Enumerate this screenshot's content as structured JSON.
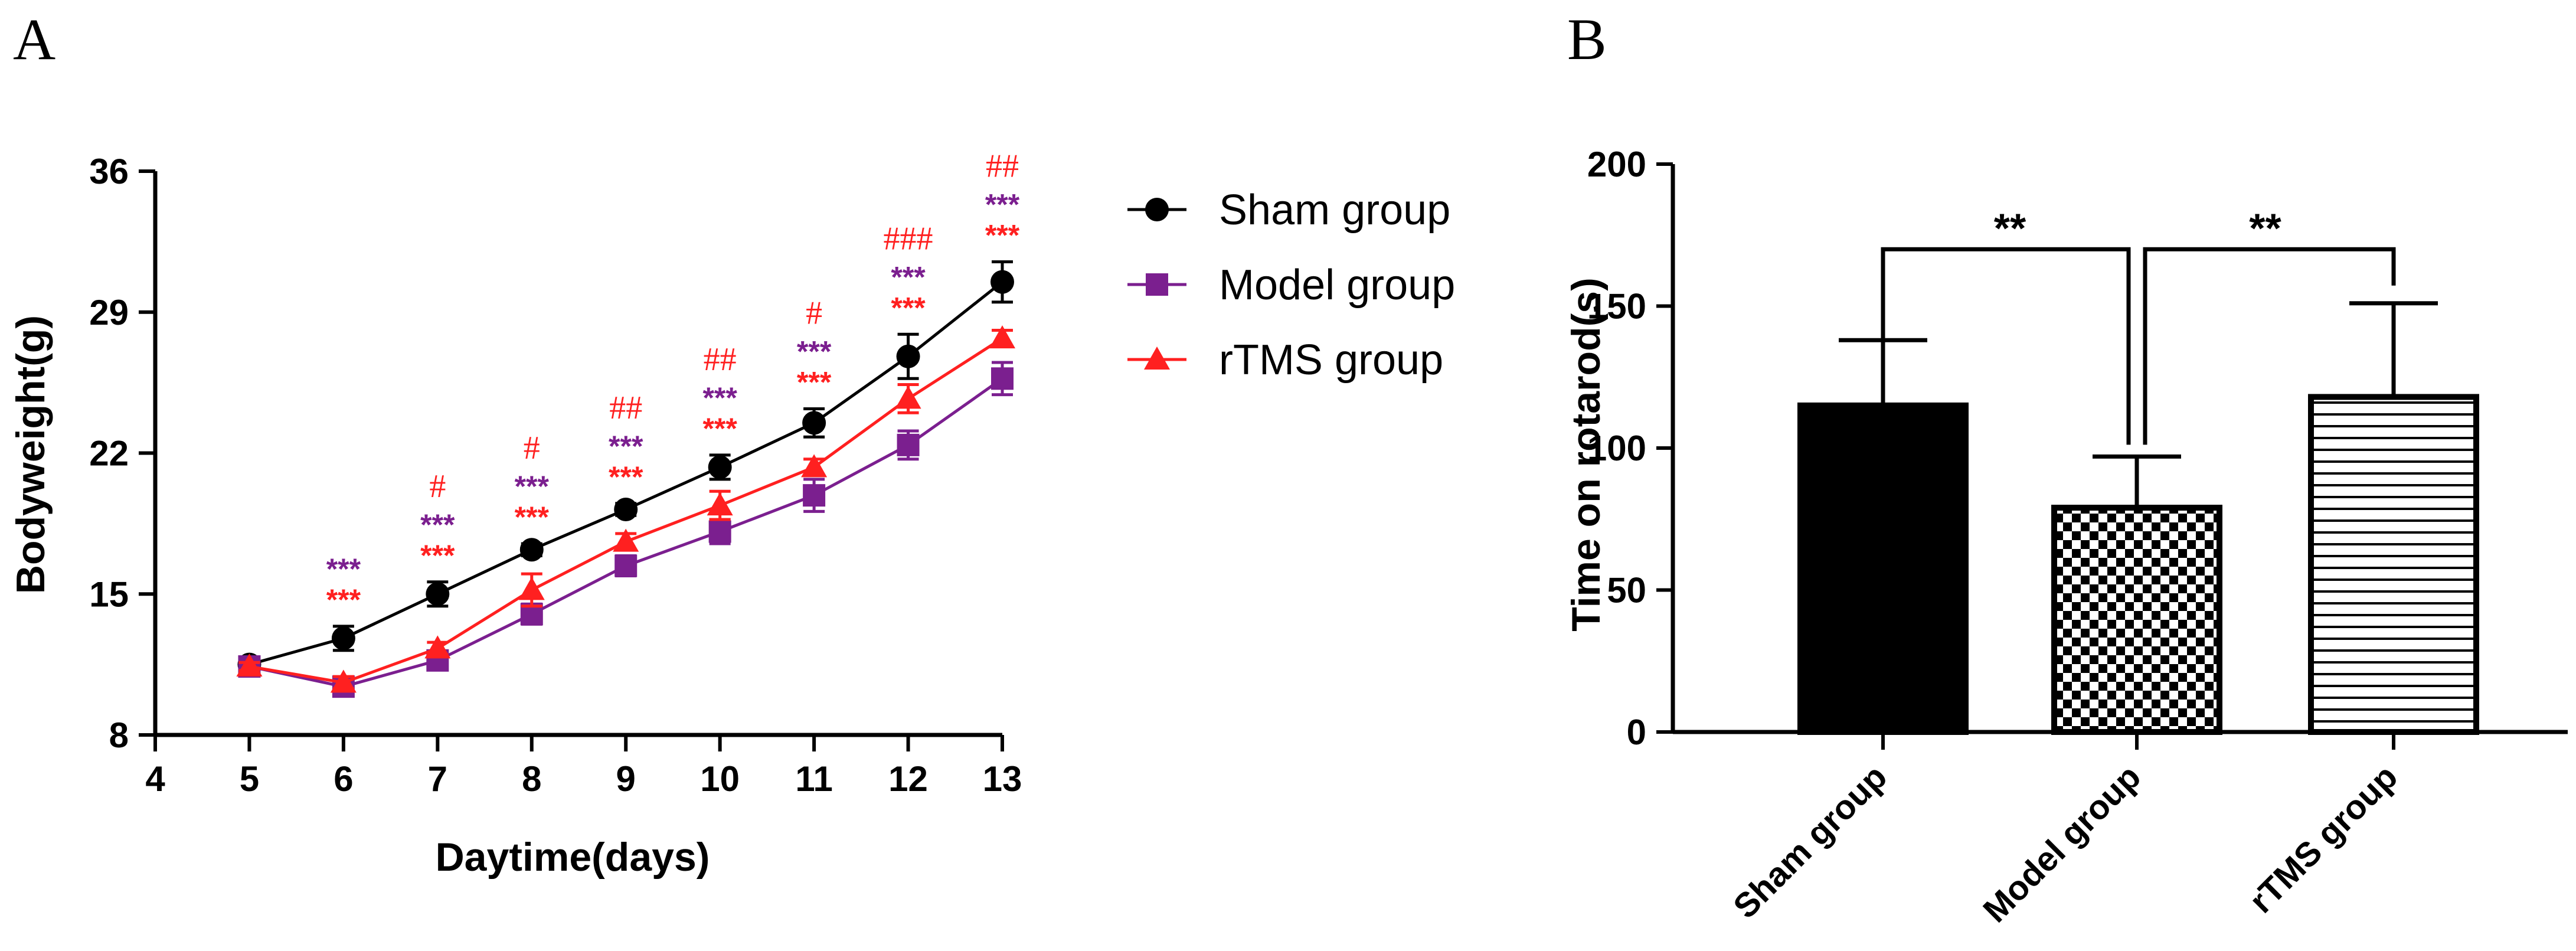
{
  "panels": {
    "a": "A",
    "b": "B"
  },
  "colors": {
    "sham": "#000000",
    "model": "#7B1F8F",
    "rtms": "#FF2020",
    "axis": "#000000"
  },
  "chart_data": [
    {
      "type": "line",
      "panel": "A",
      "xlabel": "Daytime(days)",
      "ylabel": "Bodyweight(g)",
      "xlim": [
        4,
        13
      ],
      "ylim": [
        8,
        36
      ],
      "xticks": [
        4,
        5,
        6,
        7,
        8,
        9,
        10,
        11,
        12,
        13
      ],
      "yticks": [
        8,
        15,
        22,
        29,
        36
      ],
      "x": [
        5,
        6,
        7,
        8,
        9,
        10,
        11,
        12,
        13
      ],
      "series": [
        {
          "name": "Sham group",
          "key": "sham",
          "marker": "circle",
          "values": [
            11.5,
            12.8,
            15.0,
            17.2,
            19.2,
            21.3,
            23.5,
            26.8,
            30.5
          ],
          "err": [
            0.3,
            0.6,
            0.6,
            0.3,
            0.3,
            0.6,
            0.7,
            1.1,
            1.0
          ]
        },
        {
          "name": "Model group",
          "key": "model",
          "marker": "square",
          "values": [
            11.4,
            10.4,
            11.7,
            14.0,
            16.4,
            18.1,
            19.9,
            22.4,
            25.7
          ],
          "err": [
            0.3,
            0.3,
            0.4,
            0.5,
            0.5,
            0.6,
            0.8,
            0.7,
            0.8
          ]
        },
        {
          "name": "rTMS group",
          "key": "rtms",
          "marker": "triangle",
          "values": [
            11.4,
            10.6,
            12.3,
            15.2,
            17.6,
            19.4,
            21.3,
            24.7,
            27.7
          ],
          "err": [
            0.2,
            0.3,
            0.3,
            0.8,
            0.4,
            0.7,
            0.4,
            0.7,
            0.4
          ]
        }
      ],
      "annotations": [
        {
          "x": 6,
          "lines": [
            {
              "text": "***",
              "key": "model",
              "kind": "star"
            },
            {
              "text": "***",
              "key": "rtms",
              "kind": "star"
            }
          ]
        },
        {
          "x": 7,
          "lines": [
            {
              "text": "#",
              "key": "rtms",
              "kind": "hash"
            },
            {
              "text": "***",
              "key": "model",
              "kind": "star"
            },
            {
              "text": "***",
              "key": "rtms",
              "kind": "star"
            }
          ]
        },
        {
          "x": 8,
          "lines": [
            {
              "text": "#",
              "key": "rtms",
              "kind": "hash"
            },
            {
              "text": "***",
              "key": "model",
              "kind": "star"
            },
            {
              "text": "***",
              "key": "rtms",
              "kind": "star"
            }
          ]
        },
        {
          "x": 9,
          "lines": [
            {
              "text": "##",
              "key": "rtms",
              "kind": "hash"
            },
            {
              "text": "***",
              "key": "model",
              "kind": "star"
            },
            {
              "text": "***",
              "key": "rtms",
              "kind": "star"
            }
          ]
        },
        {
          "x": 10,
          "lines": [
            {
              "text": "##",
              "key": "rtms",
              "kind": "hash"
            },
            {
              "text": "***",
              "key": "model",
              "kind": "star"
            },
            {
              "text": "***",
              "key": "rtms",
              "kind": "star"
            }
          ]
        },
        {
          "x": 11,
          "lines": [
            {
              "text": "#",
              "key": "rtms",
              "kind": "hash"
            },
            {
              "text": "***",
              "key": "model",
              "kind": "star"
            },
            {
              "text": "***",
              "key": "rtms",
              "kind": "star"
            }
          ]
        },
        {
          "x": 12,
          "lines": [
            {
              "text": "###",
              "key": "rtms",
              "kind": "hash"
            },
            {
              "text": "***",
              "key": "model",
              "kind": "star"
            },
            {
              "text": "***",
              "key": "rtms",
              "kind": "star"
            }
          ]
        },
        {
          "x": 13,
          "lines": [
            {
              "text": "##",
              "key": "rtms",
              "kind": "hash"
            },
            {
              "text": "***",
              "key": "model",
              "kind": "star"
            },
            {
              "text": "***",
              "key": "rtms",
              "kind": "star"
            }
          ]
        }
      ]
    },
    {
      "type": "bar",
      "panel": "B",
      "xlabel": "",
      "ylabel": "Time on rotarod(s)",
      "ylim": [
        0,
        200
      ],
      "yticks": [
        0,
        50,
        100,
        150,
        200
      ],
      "categories": [
        "Sham group",
        "Model group",
        "rTMS group"
      ],
      "fills": [
        "solid",
        "checker",
        "hstripes"
      ],
      "values": [
        115,
        79,
        118
      ],
      "err": [
        23,
        18,
        33
      ],
      "brackets": [
        {
          "from": 0,
          "to": 1,
          "label": "**"
        },
        {
          "from": 1,
          "to": 2,
          "label": "**"
        }
      ]
    }
  ]
}
